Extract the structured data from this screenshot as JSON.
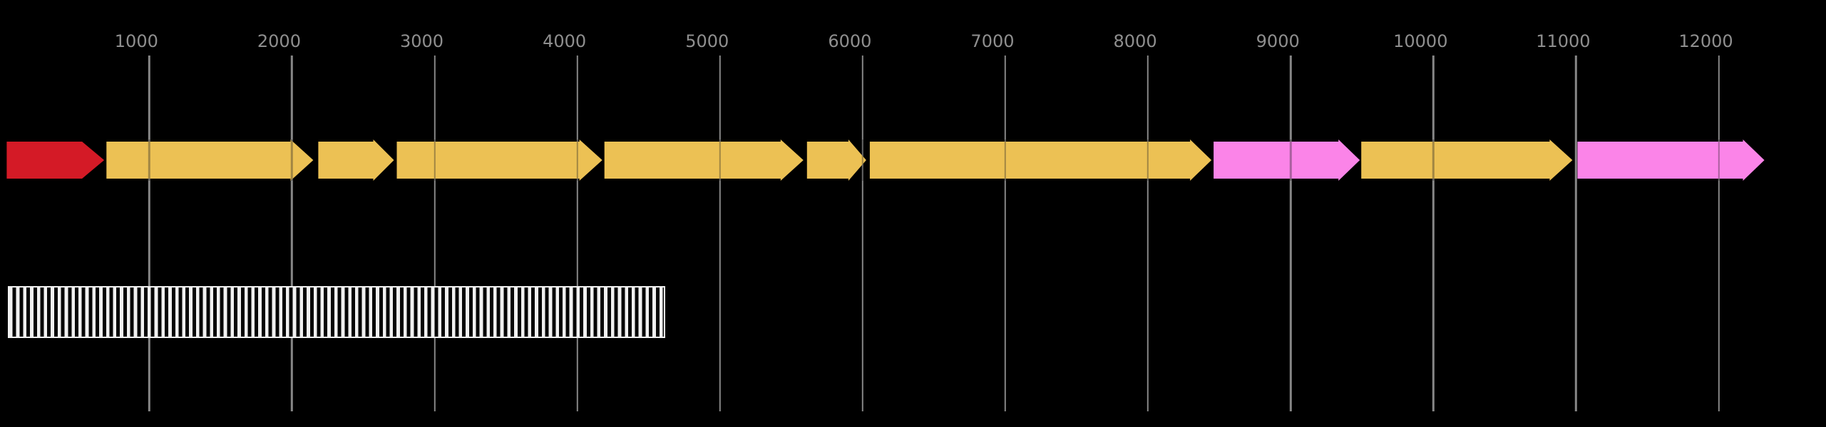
{
  "chart_data": {
    "type": "genome_feature_map",
    "title": "",
    "background_color": "#000000",
    "axis": {
      "orientation": "top",
      "unit": "bp",
      "x_domain": [
        -46,
        12752
      ],
      "tick_values": [
        1000,
        2000,
        3000,
        4000,
        5000,
        6000,
        7000,
        8000,
        9000,
        10000,
        11000,
        12000
      ],
      "tick_labels": [
        "1000",
        "2000",
        "3000",
        "4000",
        "5000",
        "6000",
        "7000",
        "8000",
        "9000",
        "10000",
        "11000",
        "12000"
      ],
      "gridlines": true,
      "gridline_color": "#868686",
      "tick_label_color": "#8f8f8f"
    },
    "legend": {
      "shown": false
    },
    "feature_colors": {
      "red": "#d41a26",
      "yellow": "#ecc154",
      "pink": "#fb84e8"
    },
    "features": [
      {
        "name": "gene-arrow-1",
        "start": 1,
        "end": 684,
        "strand": "+",
        "shape": "arrow",
        "color": "#d41a26",
        "head_bp": 155,
        "flange": false
      },
      {
        "name": "gene-arrow-2",
        "start": 700,
        "end": 2150,
        "strand": "+",
        "shape": "arrow",
        "color": "#ecc154",
        "head_bp": 160,
        "flange": true
      },
      {
        "name": "gene-arrow-3",
        "start": 2185,
        "end": 2715,
        "strand": "+",
        "shape": "arrow",
        "color": "#ecc154",
        "head_bp": 145,
        "flange": true
      },
      {
        "name": "gene-arrow-4",
        "start": 2735,
        "end": 4175,
        "strand": "+",
        "shape": "arrow",
        "color": "#ecc154",
        "head_bp": 160,
        "flange": true
      },
      {
        "name": "gene-arrow-5",
        "start": 4190,
        "end": 5585,
        "strand": "+",
        "shape": "arrow",
        "color": "#ecc154",
        "head_bp": 160,
        "flange": true
      },
      {
        "name": "gene-arrow-6",
        "start": 5610,
        "end": 6025,
        "strand": "+",
        "shape": "arrow",
        "color": "#ecc154",
        "head_bp": 125,
        "flange": true
      },
      {
        "name": "gene-arrow-7",
        "start": 6050,
        "end": 8445,
        "strand": "+",
        "shape": "arrow",
        "color": "#ecc154",
        "head_bp": 150,
        "flange": true
      },
      {
        "name": "gene-arrow-8",
        "start": 8460,
        "end": 9485,
        "strand": "+",
        "shape": "arrow",
        "color": "#fb84e8",
        "head_bp": 150,
        "flange": true
      },
      {
        "name": "gene-arrow-9",
        "start": 9495,
        "end": 10975,
        "strand": "+",
        "shape": "arrow",
        "color": "#ecc154",
        "head_bp": 160,
        "flange": true
      },
      {
        "name": "gene-arrow-10",
        "start": 11010,
        "end": 12320,
        "strand": "+",
        "shape": "arrow",
        "color": "#fb84e8",
        "head_bp": 150,
        "flange": true
      }
    ],
    "regions": [
      {
        "name": "hatched-region-1",
        "start": 9,
        "end": 4615,
        "style": "vertical-stripes",
        "stripe_colors": [
          "#f1f1f1",
          "#050505"
        ],
        "border_color": "#f1f1f1"
      }
    ]
  }
}
